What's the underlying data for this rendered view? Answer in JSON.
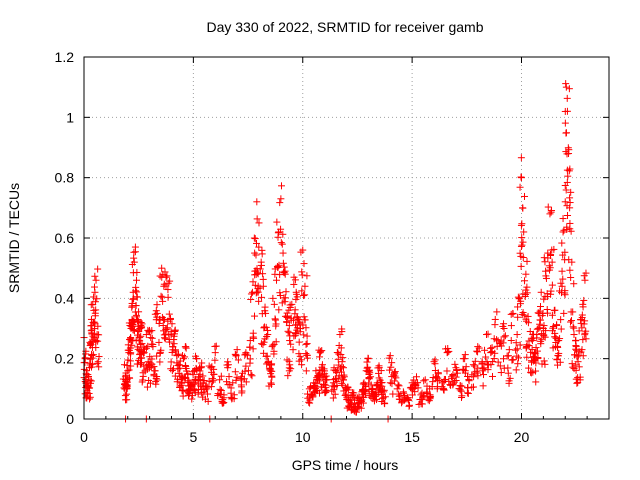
{
  "chart_data": {
    "type": "scatter",
    "title": "Day 330 of 2022, SRMTID for receiver gamb",
    "xlabel": "GPS time / hours",
    "ylabel": "SRMTID / TECUs",
    "xlim": [
      0,
      24
    ],
    "ylim": [
      0,
      1.2
    ],
    "xticks": [
      0,
      5,
      10,
      15,
      20
    ],
    "xtick_labels": [
      "0",
      "5",
      "10",
      "15",
      "20"
    ],
    "yticks": [
      0,
      0.2,
      0.4,
      0.6,
      0.8,
      1.0,
      1.2
    ],
    "ytick_labels": [
      "0",
      "0.2",
      "0.4",
      "0.6",
      "0.8",
      "1",
      "1.2"
    ],
    "grid": true,
    "marker": "+",
    "series_color": "#ff0000",
    "series": [
      {
        "name": "SRMTID",
        "x": [
          0.0,
          0.05,
          0.1,
          0.15,
          0.2,
          0.25,
          0.3,
          0.35,
          0.4,
          0.45,
          0.5,
          0.55,
          0.6,
          1.85,
          1.9,
          1.95,
          2.0,
          2.05,
          2.1,
          2.15,
          2.2,
          2.25,
          2.3,
          2.35,
          2.4,
          2.45,
          2.5,
          2.55,
          2.6,
          2.65,
          2.75,
          2.85,
          2.95,
          3.05,
          3.15,
          3.25,
          3.35,
          3.45,
          3.55,
          3.65,
          3.75,
          3.85,
          3.95,
          4.05,
          4.15,
          4.25,
          4.35,
          4.45,
          4.55,
          4.65,
          4.75,
          4.85,
          4.95,
          5.05,
          5.15,
          5.25,
          5.35,
          5.45,
          5.6,
          5.8,
          6.0,
          6.2,
          6.4,
          6.6,
          6.8,
          7.0,
          7.2,
          7.4,
          7.6,
          7.7,
          7.8,
          7.9,
          8.0,
          8.1,
          8.2,
          8.3,
          8.4,
          8.5,
          8.6,
          8.7,
          8.8,
          8.9,
          9.0,
          9.1,
          9.2,
          9.3,
          9.4,
          9.5,
          9.6,
          9.7,
          9.8,
          9.9,
          10.0,
          10.1,
          10.2,
          10.3,
          10.4,
          10.5,
          10.6,
          10.7,
          10.8,
          10.9,
          11.0,
          11.1,
          11.4,
          11.5,
          11.6,
          11.7,
          11.8,
          11.9,
          12.0,
          12.1,
          12.2,
          12.3,
          12.4,
          12.5,
          12.6,
          12.7,
          12.8,
          12.9,
          13.0,
          13.1,
          13.2,
          13.3,
          13.4,
          13.5,
          13.6,
          13.7,
          14.0,
          14.2,
          14.4,
          14.6,
          14.8,
          15.0,
          15.2,
          15.4,
          15.6,
          15.8,
          16.0,
          16.2,
          16.4,
          16.6,
          16.8,
          17.0,
          17.2,
          17.4,
          17.6,
          17.8,
          18.0,
          18.2,
          18.4,
          18.6,
          18.8,
          19.0,
          19.2,
          19.4,
          19.6,
          19.8,
          19.9,
          20.0,
          20.05,
          20.1,
          20.2,
          20.3,
          20.4,
          20.5,
          20.6,
          20.7,
          20.8,
          20.9,
          21.0,
          21.1,
          21.2,
          21.3,
          21.4,
          21.5,
          21.6,
          21.7,
          21.8,
          21.9,
          22.0,
          22.05,
          22.1,
          22.15,
          22.2,
          22.3,
          22.4,
          22.5,
          22.6,
          22.7,
          22.8,
          22.9,
          1.9,
          2.85,
          5.75,
          11.3,
          13.9
        ],
        "y": [
          0.27,
          0.2,
          0.15,
          0.12,
          0.11,
          0.17,
          0.25,
          0.31,
          0.38,
          0.36,
          0.42,
          0.46,
          0.28,
          0.18,
          0.13,
          0.11,
          0.16,
          0.22,
          0.31,
          0.3,
          0.33,
          0.42,
          0.52,
          0.57,
          0.46,
          0.33,
          0.29,
          0.3,
          0.31,
          0.25,
          0.22,
          0.28,
          0.18,
          0.27,
          0.24,
          0.16,
          0.35,
          0.33,
          0.5,
          0.44,
          0.47,
          0.45,
          0.33,
          0.24,
          0.29,
          0.21,
          0.18,
          0.13,
          0.2,
          0.24,
          0.15,
          0.12,
          0.11,
          0.16,
          0.2,
          0.14,
          0.17,
          0.12,
          0.1,
          0.17,
          0.22,
          0.13,
          0.08,
          0.18,
          0.12,
          0.23,
          0.14,
          0.22,
          0.26,
          0.42,
          0.55,
          0.72,
          0.65,
          0.52,
          0.44,
          0.35,
          0.28,
          0.18,
          0.24,
          0.38,
          0.46,
          0.62,
          0.73,
          0.55,
          0.48,
          0.34,
          0.26,
          0.38,
          0.47,
          0.42,
          0.33,
          0.3,
          0.56,
          0.44,
          0.25,
          0.1,
          0.08,
          0.12,
          0.16,
          0.14,
          0.22,
          0.18,
          0.15,
          0.13,
          0.12,
          0.16,
          0.22,
          0.28,
          0.19,
          0.14,
          0.1,
          0.06,
          0.05,
          0.08,
          0.04,
          0.07,
          0.06,
          0.09,
          0.12,
          0.16,
          0.2,
          0.14,
          0.1,
          0.08,
          0.11,
          0.17,
          0.12,
          0.09,
          0.21,
          0.15,
          0.11,
          0.09,
          0.07,
          0.12,
          0.14,
          0.08,
          0.13,
          0.1,
          0.19,
          0.15,
          0.12,
          0.22,
          0.14,
          0.17,
          0.11,
          0.2,
          0.13,
          0.18,
          0.24,
          0.19,
          0.28,
          0.22,
          0.33,
          0.25,
          0.3,
          0.21,
          0.35,
          0.28,
          0.4,
          0.8,
          0.7,
          0.62,
          0.48,
          0.34,
          0.29,
          0.26,
          0.22,
          0.28,
          0.35,
          0.42,
          0.3,
          0.49,
          0.55,
          0.68,
          0.52,
          0.36,
          0.31,
          0.26,
          0.45,
          0.62,
          0.72,
          1.1,
          1.02,
          0.88,
          0.7,
          0.52,
          0.28,
          0.24,
          0.21,
          0.33,
          0.38,
          0.46,
          0.0,
          0.0,
          0.0,
          0.0,
          0.0
        ]
      }
    ]
  }
}
